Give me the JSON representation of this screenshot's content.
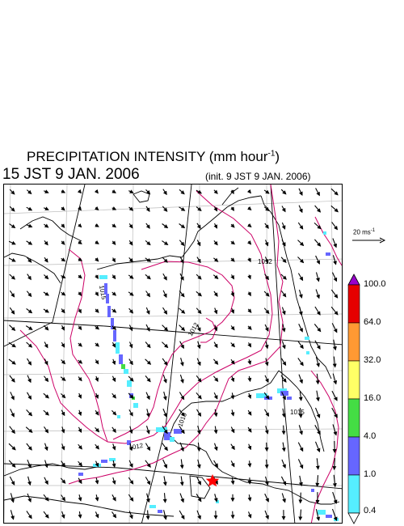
{
  "header": {
    "title_main": "PRECIPITATION INTENSITY (mm hour",
    "title_exp": "-1",
    "title_close": ")",
    "time": "15 JST 9 JAN. 2006",
    "init": "(init. 9 JST 9 JAN. 2006)"
  },
  "wind_scale": {
    "label": "20 ms",
    "exp": "-1"
  },
  "legend": {
    "levels": [
      "100.0",
      "64.0",
      "32.0",
      "16.0",
      "4.0",
      "1.0",
      "0.4"
    ],
    "colors": [
      "#9900cc",
      "#e60000",
      "#ff9933",
      "#ffff66",
      "#44dd44",
      "#6666ff",
      "#55eeff",
      "#ffffff"
    ]
  },
  "map": {
    "contour_labels": [
      "1012",
      "1012",
      "1015",
      "1015",
      "1015",
      "1012"
    ],
    "marker": "red-star"
  }
}
